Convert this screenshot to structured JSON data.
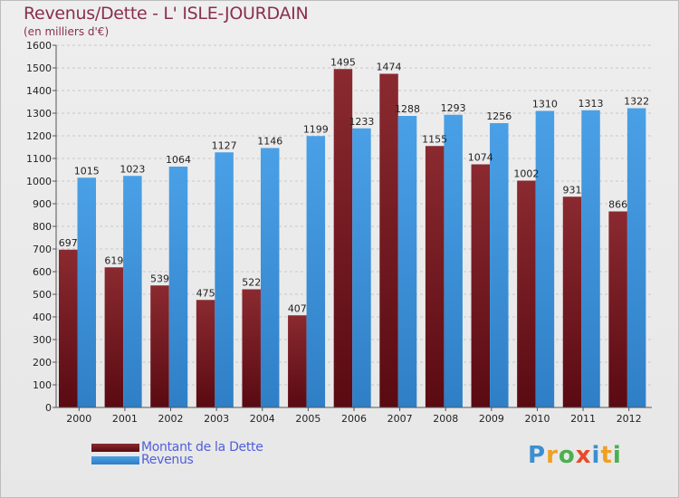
{
  "header": {
    "title": "Revenus/Dette - L' ISLE-JOURDAIN",
    "subtitle": "(en milliers d'€)"
  },
  "legend": {
    "debt_label": "Montant de la Dette",
    "revenue_label": "Revenus"
  },
  "logo": {
    "text": "Proxiti"
  },
  "chart_data": {
    "type": "bar",
    "title": "Revenus/Dette - L' ISLE-JOURDAIN",
    "subtitle": "(en milliers d'€)",
    "xlabel": "",
    "ylabel": "",
    "categories": [
      "2000",
      "2001",
      "2002",
      "2003",
      "2004",
      "2005",
      "2006",
      "2007",
      "2008",
      "2009",
      "2010",
      "2011",
      "2012"
    ],
    "series": [
      {
        "name": "Montant de la Dette",
        "color": "#7a1a22",
        "values": [
          697,
          619,
          539,
          475,
          522,
          407,
          1495,
          1474,
          1155,
          1074,
          1002,
          931,
          866
        ],
        "labels": [
          "697",
          "619",
          "539",
          "475",
          "522",
          "407",
          "1495",
          "1474",
          "1155",
          "1074",
          "1002",
          "931",
          "866"
        ]
      },
      {
        "name": "Revenus",
        "color": "#3a8fd6",
        "values": [
          1015,
          1023,
          1064,
          1127,
          1146,
          1199,
          1233,
          1288,
          1293,
          1256,
          1310,
          1313,
          1322
        ],
        "labels": [
          "1015",
          "1023",
          "1064",
          "1127",
          "1146",
          "1199",
          "1233",
          "1288",
          "1293",
          "1256",
          "1310",
          "1313",
          "1322"
        ]
      }
    ],
    "ylim": [
      0,
      1600
    ],
    "yticks": [
      0,
      100,
      200,
      300,
      400,
      500,
      600,
      700,
      800,
      900,
      1000,
      1100,
      1200,
      1300,
      1400,
      1500,
      1600
    ],
    "grid": true,
    "legend_position": "bottom-left"
  }
}
